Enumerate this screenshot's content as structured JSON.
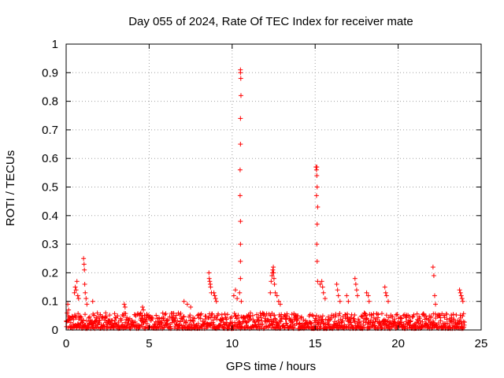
{
  "chart_data": {
    "type": "scatter",
    "title": "Day 055 of 2024, Rate Of TEC Index for receiver mate",
    "xlabel": "GPS time / hours",
    "ylabel": "ROTI / TECUs",
    "xlim": [
      0,
      25
    ],
    "ylim": [
      0,
      1
    ],
    "xticks": [
      0,
      5,
      10,
      15,
      20,
      25
    ],
    "yticks": [
      0,
      0.1,
      0.2,
      0.3,
      0.4,
      0.5,
      0.6,
      0.7,
      0.8,
      0.9,
      1
    ],
    "grid": true,
    "marker": "+",
    "color": "#ff0000",
    "series": [
      {
        "name": "ROTI",
        "baseline_range": [
          0.005,
          0.06
        ],
        "spike_points": [
          {
            "x": 0.1,
            "y": 0.09
          },
          {
            "x": 0.15,
            "y": 0.07
          },
          {
            "x": 0.5,
            "y": 0.13
          },
          {
            "x": 0.55,
            "y": 0.15
          },
          {
            "x": 0.6,
            "y": 0.14
          },
          {
            "x": 0.65,
            "y": 0.17
          },
          {
            "x": 0.7,
            "y": 0.12
          },
          {
            "x": 0.75,
            "y": 0.11
          },
          {
            "x": 1.05,
            "y": 0.25
          },
          {
            "x": 1.08,
            "y": 0.23
          },
          {
            "x": 1.1,
            "y": 0.21
          },
          {
            "x": 1.12,
            "y": 0.16
          },
          {
            "x": 1.15,
            "y": 0.13
          },
          {
            "x": 1.2,
            "y": 0.11
          },
          {
            "x": 1.25,
            "y": 0.09
          },
          {
            "x": 1.6,
            "y": 0.1
          },
          {
            "x": 3.5,
            "y": 0.09
          },
          {
            "x": 3.55,
            "y": 0.08
          },
          {
            "x": 4.6,
            "y": 0.08
          },
          {
            "x": 4.65,
            "y": 0.07
          },
          {
            "x": 7.1,
            "y": 0.1
          },
          {
            "x": 7.3,
            "y": 0.09
          },
          {
            "x": 7.5,
            "y": 0.08
          },
          {
            "x": 8.6,
            "y": 0.2
          },
          {
            "x": 8.62,
            "y": 0.18
          },
          {
            "x": 8.65,
            "y": 0.17
          },
          {
            "x": 8.68,
            "y": 0.16
          },
          {
            "x": 8.7,
            "y": 0.15
          },
          {
            "x": 8.75,
            "y": 0.13
          },
          {
            "x": 8.9,
            "y": 0.13
          },
          {
            "x": 8.95,
            "y": 0.12
          },
          {
            "x": 9.0,
            "y": 0.11
          },
          {
            "x": 9.05,
            "y": 0.1
          },
          {
            "x": 10.1,
            "y": 0.12
          },
          {
            "x": 10.2,
            "y": 0.14
          },
          {
            "x": 10.3,
            "y": 0.11
          },
          {
            "x": 10.5,
            "y": 0.91
          },
          {
            "x": 10.5,
            "y": 0.9
          },
          {
            "x": 10.52,
            "y": 0.88
          },
          {
            "x": 10.53,
            "y": 0.82
          },
          {
            "x": 10.5,
            "y": 0.74
          },
          {
            "x": 10.5,
            "y": 0.65
          },
          {
            "x": 10.48,
            "y": 0.56
          },
          {
            "x": 10.48,
            "y": 0.47
          },
          {
            "x": 10.5,
            "y": 0.38
          },
          {
            "x": 10.5,
            "y": 0.3
          },
          {
            "x": 10.5,
            "y": 0.24
          },
          {
            "x": 10.5,
            "y": 0.18
          },
          {
            "x": 10.45,
            "y": 0.13
          },
          {
            "x": 10.55,
            "y": 0.1
          },
          {
            "x": 12.3,
            "y": 0.13
          },
          {
            "x": 12.35,
            "y": 0.17
          },
          {
            "x": 12.4,
            "y": 0.19
          },
          {
            "x": 12.42,
            "y": 0.2
          },
          {
            "x": 12.45,
            "y": 0.21
          },
          {
            "x": 12.48,
            "y": 0.22
          },
          {
            "x": 12.5,
            "y": 0.2
          },
          {
            "x": 12.52,
            "y": 0.18
          },
          {
            "x": 12.55,
            "y": 0.16
          },
          {
            "x": 12.6,
            "y": 0.13
          },
          {
            "x": 12.7,
            "y": 0.12
          },
          {
            "x": 12.8,
            "y": 0.1
          },
          {
            "x": 12.9,
            "y": 0.09
          },
          {
            "x": 15.05,
            "y": 0.57
          },
          {
            "x": 15.08,
            "y": 0.56
          },
          {
            "x": 15.1,
            "y": 0.57
          },
          {
            "x": 15.1,
            "y": 0.54
          },
          {
            "x": 15.12,
            "y": 0.5
          },
          {
            "x": 15.08,
            "y": 0.47
          },
          {
            "x": 15.15,
            "y": 0.43
          },
          {
            "x": 15.12,
            "y": 0.37
          },
          {
            "x": 15.1,
            "y": 0.3
          },
          {
            "x": 15.12,
            "y": 0.24
          },
          {
            "x": 15.15,
            "y": 0.17
          },
          {
            "x": 15.3,
            "y": 0.16
          },
          {
            "x": 15.4,
            "y": 0.17
          },
          {
            "x": 15.45,
            "y": 0.15
          },
          {
            "x": 15.5,
            "y": 0.13
          },
          {
            "x": 15.6,
            "y": 0.11
          },
          {
            "x": 16.3,
            "y": 0.16
          },
          {
            "x": 16.35,
            "y": 0.14
          },
          {
            "x": 16.4,
            "y": 0.12
          },
          {
            "x": 16.5,
            "y": 0.1
          },
          {
            "x": 16.9,
            "y": 0.12
          },
          {
            "x": 17.0,
            "y": 0.1
          },
          {
            "x": 17.4,
            "y": 0.18
          },
          {
            "x": 17.45,
            "y": 0.16
          },
          {
            "x": 17.5,
            "y": 0.14
          },
          {
            "x": 17.55,
            "y": 0.12
          },
          {
            "x": 18.1,
            "y": 0.13
          },
          {
            "x": 18.2,
            "y": 0.12
          },
          {
            "x": 18.25,
            "y": 0.1
          },
          {
            "x": 19.2,
            "y": 0.15
          },
          {
            "x": 19.25,
            "y": 0.13
          },
          {
            "x": 19.3,
            "y": 0.12
          },
          {
            "x": 19.4,
            "y": 0.1
          },
          {
            "x": 22.1,
            "y": 0.22
          },
          {
            "x": 22.15,
            "y": 0.19
          },
          {
            "x": 22.2,
            "y": 0.12
          },
          {
            "x": 22.25,
            "y": 0.09
          },
          {
            "x": 23.7,
            "y": 0.14
          },
          {
            "x": 23.75,
            "y": 0.13
          },
          {
            "x": 23.8,
            "y": 0.12
          },
          {
            "x": 23.85,
            "y": 0.11
          },
          {
            "x": 23.9,
            "y": 0.1
          }
        ]
      }
    ]
  }
}
